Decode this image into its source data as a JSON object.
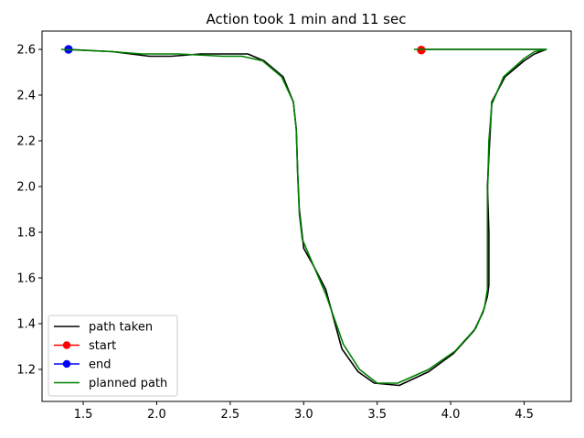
{
  "chart_data": {
    "type": "line",
    "title": "Action took 1 min and 11 sec",
    "xlabel": "",
    "ylabel": "",
    "xlim": [
      1.22,
      4.82
    ],
    "ylim": [
      1.06,
      2.68
    ],
    "xticks": [
      1.5,
      2.0,
      2.5,
      3.0,
      3.5,
      4.0,
      4.5
    ],
    "yticks": [
      1.2,
      1.4,
      1.6,
      1.8,
      2.0,
      2.2,
      2.4,
      2.6
    ],
    "xtick_labels": [
      "1.5",
      "2.0",
      "2.5",
      "3.0",
      "3.5",
      "4.0",
      "4.5"
    ],
    "ytick_labels": [
      "1.2",
      "1.4",
      "1.6",
      "1.8",
      "2.0",
      "2.2",
      "2.4",
      "2.6"
    ],
    "grid": false,
    "legend_position": "lower-left",
    "series": [
      {
        "name": "path taken",
        "color": "#000000",
        "marker": "none",
        "x": [
          3.8,
          4.5,
          4.65,
          4.57,
          4.5,
          4.37,
          4.28,
          4.26,
          4.25,
          4.26,
          4.26,
          4.25,
          4.22,
          4.16,
          4.02,
          3.85,
          3.65,
          3.48,
          3.37,
          3.26,
          3.15,
          3.07,
          3.0,
          2.97,
          2.96,
          2.95,
          2.93,
          2.86,
          2.73,
          2.62,
          2.48,
          2.3,
          2.1,
          1.95,
          1.7,
          1.4
        ],
        "y": [
          2.6,
          2.6,
          2.6,
          2.58,
          2.55,
          2.48,
          2.37,
          2.13,
          2.0,
          1.8,
          1.57,
          1.52,
          1.45,
          1.37,
          1.27,
          1.19,
          1.13,
          1.14,
          1.19,
          1.29,
          1.55,
          1.65,
          1.73,
          1.9,
          2.05,
          2.25,
          2.37,
          2.48,
          2.55,
          2.58,
          2.58,
          2.58,
          2.57,
          2.57,
          2.59,
          2.6
        ]
      },
      {
        "name": "start",
        "color": "#ff0000",
        "marker": "circle",
        "x": [
          3.8
        ],
        "y": [
          2.597
        ]
      },
      {
        "name": "end",
        "color": "#0000ff",
        "marker": "circle",
        "x": [
          1.4
        ],
        "y": [
          2.6
        ]
      },
      {
        "name": "planned path",
        "color": "#008000",
        "marker": "none",
        "x": [
          3.75,
          4.65,
          4.57,
          4.5,
          4.36,
          4.28,
          4.26,
          4.25,
          4.25,
          4.25,
          4.23,
          4.17,
          4.03,
          3.85,
          3.64,
          3.5,
          3.38,
          3.27,
          3.15,
          3.07,
          2.99,
          2.97,
          2.96,
          2.95,
          2.93,
          2.85,
          2.72,
          2.58,
          2.45,
          2.15,
          1.9,
          1.7,
          1.35
        ],
        "y": [
          2.6,
          2.6,
          2.59,
          2.56,
          2.48,
          2.36,
          2.2,
          1.95,
          1.7,
          1.55,
          1.47,
          1.38,
          1.28,
          1.2,
          1.14,
          1.14,
          1.2,
          1.31,
          1.53,
          1.65,
          1.77,
          1.88,
          2.05,
          2.25,
          2.37,
          2.48,
          2.55,
          2.57,
          2.57,
          2.58,
          2.58,
          2.59,
          2.6
        ]
      }
    ]
  }
}
